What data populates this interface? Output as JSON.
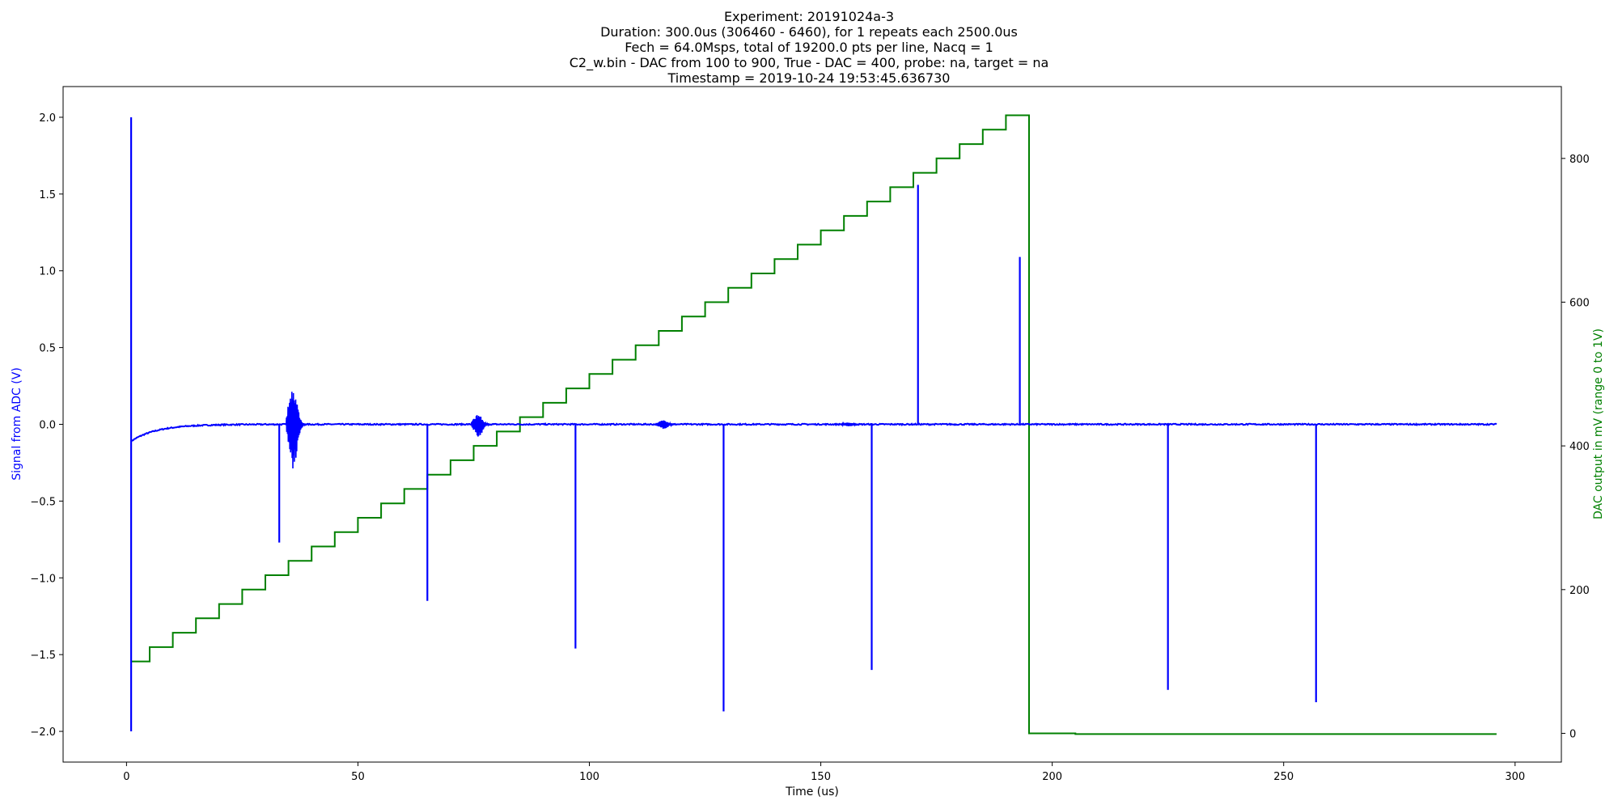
{
  "chart_data": {
    "type": "line",
    "title_lines": [
      "Experiment: 20191024a-3",
      "Duration: 300.0us (306460 - 6460), for 1 repeats each 2500.0us",
      "Fech = 64.0Msps, total of 19200.0 pts per line, Nacq = 1",
      "C2_w.bin - DAC from 100 to 900, True - DAC = 400, probe: na, target = na",
      "Timestamp = 2019-10-24 19:53:45.636730"
    ],
    "xlabel": "Time (us)",
    "ylabel_left": "Signal from ADC (V)",
    "ylabel_right": "DAC output in mV (range 0 to 1V)",
    "xlim": [
      -13.7,
      310
    ],
    "ylim_left": [
      -2.2,
      2.2
    ],
    "ylim_right": [
      -40,
      900
    ],
    "x_ticks": [
      "0",
      "50",
      "100",
      "150",
      "200",
      "250",
      "300"
    ],
    "y_left_ticks": [
      "−2.0",
      "−1.5",
      "−1.0",
      "−0.5",
      "0.0",
      "0.5",
      "1.0",
      "1.5",
      "2.0"
    ],
    "y_right_ticks": [
      "0",
      "200",
      "400",
      "600",
      "800"
    ],
    "colors": {
      "signal": "#0000ff",
      "dac": "#008000",
      "left_label": "#0000ff",
      "right_label": "#008000"
    },
    "series": [
      {
        "axis": "left",
        "color": "#0000ff",
        "baseline": 0.0,
        "initial_offset": -0.11,
        "x_range": [
          1,
          296
        ],
        "spikes": [
          {
            "x": 1,
            "min": -2.0,
            "max": 2.0
          },
          {
            "x": 33,
            "min": -0.77,
            "max": 0.0
          },
          {
            "x": 65,
            "min": -1.15,
            "max": 0.0
          },
          {
            "x": 97,
            "min": -1.46,
            "max": 0.0
          },
          {
            "x": 129,
            "min": -1.87,
            "max": 0.0
          },
          {
            "x": 161,
            "min": -1.6,
            "max": 0.0
          },
          {
            "x": 171,
            "min": 0.0,
            "max": 1.56
          },
          {
            "x": 193,
            "min": 0.0,
            "max": 1.09
          },
          {
            "x": 225,
            "min": -1.73,
            "max": 0.0
          },
          {
            "x": 257,
            "min": -1.81,
            "max": 0.0
          }
        ],
        "bursts": [
          {
            "x": 36,
            "amp": 0.32
          },
          {
            "x": 76,
            "amp": 0.09
          },
          {
            "x": 116,
            "amp": 0.035
          },
          {
            "x": 156,
            "amp": 0.015
          }
        ]
      },
      {
        "axis": "right",
        "color": "#008000",
        "step_x": [
          1,
          5,
          10,
          15,
          20,
          25,
          30,
          35,
          40,
          45,
          50,
          55,
          60,
          65,
          70,
          75,
          80,
          85,
          90,
          95,
          100,
          105,
          110,
          115,
          120,
          125,
          130,
          135,
          140,
          145,
          150,
          155,
          160,
          165,
          170,
          175,
          180,
          185,
          190,
          195,
          205,
          296
        ],
        "step_y": [
          100,
          120,
          140,
          160,
          180,
          200,
          220,
          240,
          260,
          280,
          300,
          320,
          340,
          360,
          380,
          400,
          420,
          440,
          460,
          480,
          500,
          520,
          540,
          560,
          580,
          600,
          620,
          640,
          660,
          680,
          700,
          720,
          740,
          760,
          780,
          800,
          820,
          840,
          860,
          0,
          -1,
          -1
        ]
      }
    ]
  }
}
